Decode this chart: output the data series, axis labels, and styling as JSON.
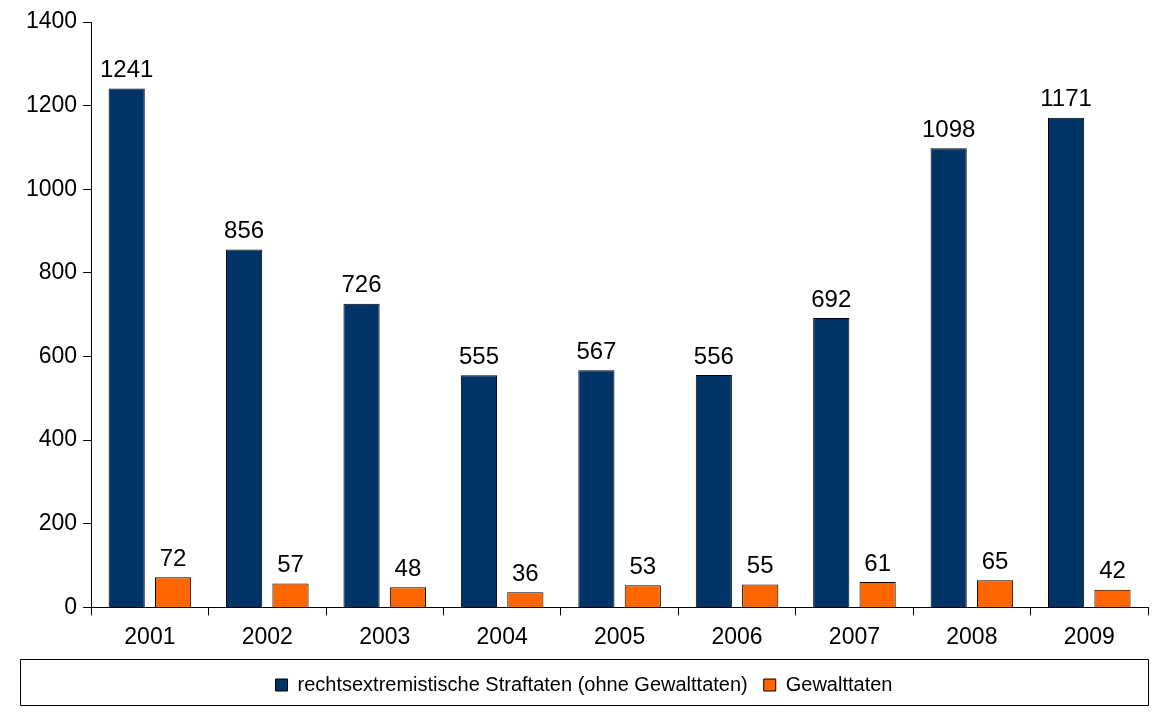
{
  "chart_data": {
    "type": "bar",
    "categories": [
      "2001",
      "2002",
      "2003",
      "2004",
      "2005",
      "2006",
      "2007",
      "2008",
      "2009"
    ],
    "series": [
      {
        "name": "rechtsextremistische Straftaten (ohne Gewalttaten)",
        "color": "#003366",
        "values": [
          1241,
          856,
          726,
          555,
          567,
          556,
          692,
          1098,
          1171
        ]
      },
      {
        "name": "Gewalttaten",
        "color": "#ff6600",
        "values": [
          72,
          57,
          48,
          36,
          53,
          55,
          61,
          65,
          42
        ]
      }
    ],
    "ylim": [
      0,
      1400
    ],
    "yticks": [
      0,
      200,
      400,
      600,
      800,
      1000,
      1200,
      1400
    ],
    "grid": false,
    "legend": "bottom",
    "data_labels": true
  }
}
